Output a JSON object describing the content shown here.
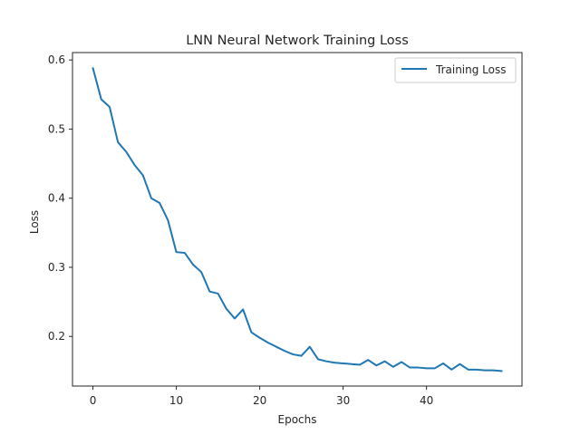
{
  "chart_data": {
    "type": "line",
    "title": "LNN Neural Network Training Loss",
    "xlabel": "Epochs",
    "ylabel": "Loss",
    "xlim": [
      -2.45,
      51.45
    ],
    "ylim": [
      0.1282,
      0.6107
    ],
    "xticks": [
      0,
      10,
      20,
      30,
      40
    ],
    "yticks": [
      0.2,
      0.3,
      0.4,
      0.5,
      0.6
    ],
    "xtick_labels": [
      "0",
      "10",
      "20",
      "30",
      "40"
    ],
    "ytick_labels": [
      "0.2",
      "0.3",
      "0.4",
      "0.5",
      "0.6"
    ],
    "grid": false,
    "legend_position": "top-right",
    "series": [
      {
        "name": "Training Loss",
        "color": "#1f77b4",
        "x": [
          0,
          1,
          2,
          3,
          4,
          5,
          6,
          7,
          8,
          9,
          10,
          11,
          12,
          13,
          14,
          15,
          16,
          17,
          18,
          19,
          20,
          21,
          22,
          23,
          24,
          25,
          26,
          27,
          28,
          29,
          30,
          31,
          32,
          33,
          34,
          35,
          36,
          37,
          38,
          39,
          40,
          41,
          42,
          43,
          44,
          45,
          46,
          47,
          48,
          49
        ],
        "y": [
          0.588,
          0.543,
          0.532,
          0.481,
          0.467,
          0.448,
          0.433,
          0.4,
          0.393,
          0.368,
          0.322,
          0.321,
          0.304,
          0.293,
          0.265,
          0.262,
          0.24,
          0.226,
          0.239,
          0.206,
          0.198,
          0.191,
          0.185,
          0.179,
          0.174,
          0.172,
          0.185,
          0.167,
          0.164,
          0.162,
          0.161,
          0.16,
          0.159,
          0.166,
          0.158,
          0.164,
          0.156,
          0.163,
          0.155,
          0.155,
          0.154,
          0.154,
          0.161,
          0.152,
          0.16,
          0.152,
          0.152,
          0.151,
          0.151,
          0.15
        ]
      }
    ]
  }
}
